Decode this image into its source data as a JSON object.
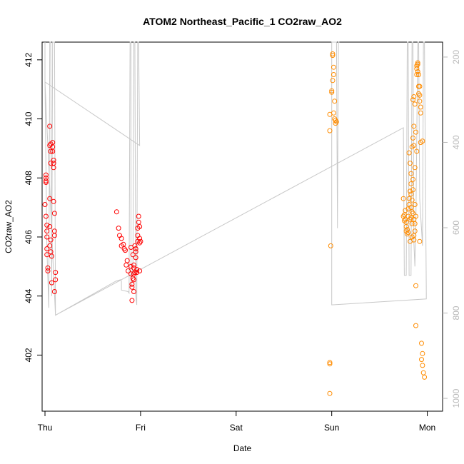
{
  "chart_data": {
    "type": "scatter",
    "title": "ATOM2 Northeast_Pacific_1 CO2raw_AO2",
    "xlabel": "Date",
    "ylabel": "CO2raw_AO2",
    "x_ticks": [
      "Thu",
      "Fri",
      "Sat",
      "Sun",
      "Mon"
    ],
    "xlim": [
      -0.03,
      4.16
    ],
    "ylim": [
      400.1,
      412.6
    ],
    "y_ticks": [
      402,
      404,
      406,
      408,
      410,
      412
    ],
    "y2_ticks": [
      200,
      400,
      600,
      800,
      1000
    ],
    "y2lim": [
      1030,
      165
    ],
    "colors": {
      "series_a": "#ff0000",
      "series_b": "#ff8c00",
      "trace": "#c8c8c8",
      "y2_axis": "#b8b8b8"
    },
    "series": [
      {
        "color": "#ff0000",
        "points": [
          [
            0.01,
            408.1
          ],
          [
            0.01,
            408.0
          ],
          [
            0.01,
            407.9
          ],
          [
            0.01,
            407.85
          ],
          [
            0.0,
            407.1
          ],
          [
            0.01,
            406.7
          ],
          [
            0.02,
            406.4
          ],
          [
            0.02,
            406.2
          ],
          [
            0.02,
            406.0
          ],
          [
            0.02,
            405.6
          ],
          [
            0.02,
            405.4
          ],
          [
            0.03,
            404.95
          ],
          [
            0.03,
            404.85
          ],
          [
            0.05,
            409.75
          ],
          [
            0.05,
            409.1
          ],
          [
            0.06,
            409.15
          ],
          [
            0.06,
            408.9
          ],
          [
            0.06,
            408.5
          ],
          [
            0.05,
            407.3
          ],
          [
            0.05,
            406.35
          ],
          [
            0.05,
            405.7
          ],
          [
            0.06,
            405.9
          ],
          [
            0.06,
            405.5
          ],
          [
            0.07,
            405.35
          ],
          [
            0.07,
            404.45
          ],
          [
            0.08,
            409.2
          ],
          [
            0.08,
            409.05
          ],
          [
            0.08,
            408.9
          ],
          [
            0.09,
            408.6
          ],
          [
            0.09,
            408.5
          ],
          [
            0.09,
            408.35
          ],
          [
            0.09,
            407.2
          ],
          [
            0.1,
            406.8
          ],
          [
            0.1,
            406.2
          ],
          [
            0.1,
            406.05
          ],
          [
            0.11,
            404.8
          ],
          [
            0.11,
            404.55
          ],
          [
            0.1,
            404.15
          ],
          [
            0.75,
            406.85
          ],
          [
            0.77,
            406.3
          ],
          [
            0.78,
            406.05
          ],
          [
            0.8,
            405.95
          ],
          [
            0.8,
            405.7
          ],
          [
            0.82,
            405.75
          ],
          [
            0.83,
            405.6
          ],
          [
            0.84,
            405.55
          ],
          [
            0.86,
            405.2
          ],
          [
            0.85,
            405.05
          ],
          [
            0.87,
            404.85
          ],
          [
            0.9,
            405.65
          ],
          [
            0.9,
            405.0
          ],
          [
            0.9,
            404.75
          ],
          [
            0.91,
            404.4
          ],
          [
            0.91,
            404.3
          ],
          [
            0.92,
            404.6
          ],
          [
            0.93,
            404.55
          ],
          [
            0.93,
            404.75
          ],
          [
            0.93,
            405.05
          ],
          [
            0.93,
            404.95
          ],
          [
            0.92,
            405.4
          ],
          [
            0.93,
            404.15
          ],
          [
            0.91,
            403.85
          ],
          [
            0.94,
            404.8
          ],
          [
            0.94,
            405.7
          ],
          [
            0.95,
            405.6
          ],
          [
            0.95,
            405.5
          ],
          [
            0.95,
            405.3
          ],
          [
            0.96,
            404.9
          ],
          [
            0.96,
            404.8
          ],
          [
            0.97,
            406.3
          ],
          [
            0.97,
            406.05
          ],
          [
            0.97,
            405.85
          ],
          [
            0.98,
            406.5
          ],
          [
            0.98,
            406.7
          ],
          [
            0.99,
            405.8
          ],
          [
            0.99,
            405.95
          ],
          [
            0.99,
            406.35
          ],
          [
            1.0,
            405.85
          ],
          [
            0.99,
            404.85
          ]
        ]
      },
      {
        "color": "#ff8c00",
        "points": [
          [
            2.98,
            410.15
          ],
          [
            2.98,
            409.6
          ],
          [
            3.0,
            410.9
          ],
          [
            3.0,
            410.95
          ],
          [
            3.01,
            411.3
          ],
          [
            3.01,
            412.2
          ],
          [
            3.01,
            412.15
          ],
          [
            3.02,
            411.75
          ],
          [
            3.02,
            411.5
          ],
          [
            3.03,
            410.6
          ],
          [
            3.03,
            410.0
          ],
          [
            3.02,
            410.2
          ],
          [
            3.04,
            409.95
          ],
          [
            3.04,
            409.85
          ],
          [
            3.05,
            409.9
          ],
          [
            2.99,
            405.7
          ],
          [
            2.98,
            401.75
          ],
          [
            2.98,
            401.7
          ],
          [
            2.98,
            400.7
          ],
          [
            3.75,
            407.3
          ],
          [
            3.75,
            406.7
          ],
          [
            3.76,
            406.75
          ],
          [
            3.76,
            406.55
          ],
          [
            3.77,
            406.6
          ],
          [
            3.77,
            406.9
          ],
          [
            3.78,
            406.5
          ],
          [
            3.78,
            406.35
          ],
          [
            3.78,
            406.2
          ],
          [
            3.79,
            406.25
          ],
          [
            3.79,
            406.1
          ],
          [
            3.8,
            406.7
          ],
          [
            3.8,
            406.95
          ],
          [
            3.8,
            406.15
          ],
          [
            3.81,
            407.1
          ],
          [
            3.81,
            407.3
          ],
          [
            3.82,
            407.55
          ],
          [
            3.82,
            406.6
          ],
          [
            3.82,
            405.85
          ],
          [
            3.83,
            407.45
          ],
          [
            3.83,
            407.0
          ],
          [
            3.83,
            406.65
          ],
          [
            3.84,
            407.25
          ],
          [
            3.84,
            406.85
          ],
          [
            3.84,
            406.45
          ],
          [
            3.84,
            406.0
          ],
          [
            3.85,
            407.95
          ],
          [
            3.85,
            407.6
          ],
          [
            3.85,
            406.8
          ],
          [
            3.86,
            406.6
          ],
          [
            3.86,
            406.05
          ],
          [
            3.86,
            405.9
          ],
          [
            3.87,
            407.1
          ],
          [
            3.87,
            406.45
          ],
          [
            3.87,
            406.2
          ],
          [
            3.88,
            406.7
          ],
          [
            3.81,
            408.85
          ],
          [
            3.82,
            408.5
          ],
          [
            3.83,
            408.15
          ],
          [
            3.83,
            407.8
          ],
          [
            3.84,
            409.05
          ],
          [
            3.85,
            409.35
          ],
          [
            3.86,
            409.75
          ],
          [
            3.85,
            410.65
          ],
          [
            3.86,
            410.75
          ],
          [
            3.87,
            410.5
          ],
          [
            3.86,
            409.1
          ],
          [
            3.87,
            408.35
          ],
          [
            3.88,
            409.55
          ],
          [
            3.89,
            408.9
          ],
          [
            3.88,
            404.35
          ],
          [
            3.88,
            403.0
          ],
          [
            3.89,
            411.5
          ],
          [
            3.89,
            411.7
          ],
          [
            3.89,
            411.8
          ],
          [
            3.9,
            411.9
          ],
          [
            3.9,
            411.85
          ],
          [
            3.9,
            411.6
          ],
          [
            3.91,
            411.5
          ],
          [
            3.91,
            411.1
          ],
          [
            3.91,
            410.85
          ],
          [
            3.92,
            411.1
          ],
          [
            3.92,
            410.8
          ],
          [
            3.92,
            410.6
          ],
          [
            3.93,
            410.4
          ],
          [
            3.93,
            410.2
          ],
          [
            3.93,
            409.2
          ],
          [
            3.95,
            409.25
          ],
          [
            3.92,
            405.85
          ],
          [
            3.94,
            402.4
          ],
          [
            3.95,
            402.05
          ],
          [
            3.95,
            401.65
          ],
          [
            3.96,
            401.4
          ],
          [
            3.97,
            401.25
          ],
          [
            3.94,
            401.85
          ]
        ]
      }
    ],
    "trace": {
      "color": "#c8c8c8",
      "points": [
        [
          0.0,
          412.6
        ],
        [
          0.0,
          411.25
        ],
        [
          0.02,
          405.6
        ],
        [
          0.04,
          403.6
        ],
        [
          0.05,
          412.6
        ],
        [
          0.06,
          412.6
        ],
        [
          0.07,
          404.0
        ],
        [
          0.08,
          412.6
        ],
        [
          0.1,
          412.6
        ],
        [
          0.11,
          403.35
        ],
        [
          0.74,
          404.5
        ],
        [
          0.79,
          404.55
        ],
        [
          0.8,
          404.5
        ],
        [
          0.8,
          404.2
        ],
        [
          0.87,
          404.15
        ],
        [
          0.88,
          404.1
        ],
        [
          0.89,
          412.6
        ],
        [
          0.9,
          412.6
        ],
        [
          0.9,
          404.3
        ],
        [
          0.92,
          405.0
        ],
        [
          0.93,
          412.6
        ],
        [
          0.94,
          412.6
        ],
        [
          0.95,
          404.0
        ],
        [
          0.96,
          403.7
        ],
        [
          0.97,
          412.6
        ],
        [
          0.98,
          412.6
        ],
        [
          0.99,
          409.1
        ],
        [
          0.0,
          411.25
        ],
        [
          0.11,
          403.35
        ],
        [
          3.75,
          409.7
        ],
        [
          3.76,
          404.7
        ],
        [
          3.78,
          404.7
        ],
        [
          3.79,
          412.6
        ],
        [
          3.8,
          412.6
        ],
        [
          3.81,
          404.7
        ],
        [
          3.83,
          404.7
        ],
        [
          3.84,
          412.6
        ],
        [
          3.85,
          412.6
        ],
        [
          3.86,
          405.8
        ],
        [
          3.87,
          405.0
        ],
        [
          3.88,
          406.3
        ],
        [
          3.9,
          412.6
        ],
        [
          3.91,
          412.6
        ],
        [
          3.92,
          407.3
        ],
        [
          3.95,
          405.7
        ],
        [
          3.96,
          412.6
        ],
        [
          3.97,
          412.6
        ],
        [
          3.99,
          404.1
        ],
        [
          3.99,
          403.9
        ],
        [
          3.0,
          403.7
        ],
        [
          3.0,
          412.6
        ],
        [
          3.05,
          412.6
        ],
        [
          3.06,
          406.3
        ],
        [
          3.07,
          412.6
        ],
        [
          3.08,
          412.6
        ]
      ]
    }
  }
}
